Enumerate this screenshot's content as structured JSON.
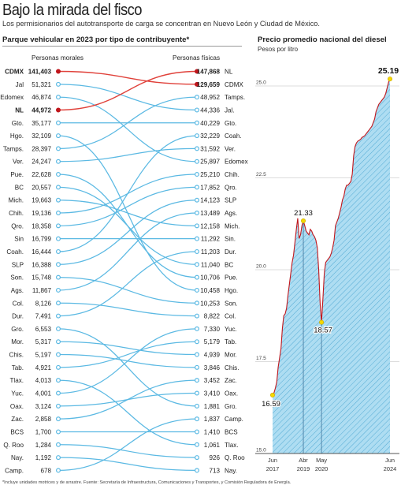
{
  "title": "Bajo la mirada del fisco",
  "subtitle": "Los permisionarios del  autotransporte de carga se concentran en Nuevo León y Ciudad de México.",
  "footnote": "*Incluye unidades motrices y de arrastre. Fuente: Secretaría de Infraestructura, Comunicaciones y Transportes, y Comisión Reguladora de Energía.",
  "colors": {
    "line": "#5bb9e3",
    "highlight": "#e0413a",
    "highlight_dot": "#c0161c",
    "area_fill": "#aeddf2",
    "area_hatch": "#4aa5d1",
    "area_stroke": "#c0161c",
    "peak_dot": "#f5d800"
  },
  "left_panel": {
    "title": "Parque vehicular en 2023 por tipo de contribuyente*",
    "left_header": "Personas morales",
    "right_header": "Personas físicas"
  },
  "right_panel": {
    "title": "Precio promedio nacional del diesel",
    "subtitle": "Pesos por litro"
  },
  "chart_data": [
    {
      "type": "slope",
      "title": "Parque vehicular en 2023 por tipo de contribuyente*",
      "series_left_name": "Personas morales",
      "series_right_name": "Personas físicas",
      "highlight": [
        "CDMX",
        "NL"
      ],
      "left": [
        {
          "label": "CDMX",
          "value": 141403,
          "text": "141,403"
        },
        {
          "label": "Jal",
          "value": 51321,
          "text": "51,321"
        },
        {
          "label": "Edomex",
          "value": 46874,
          "text": "46,874"
        },
        {
          "label": "NL",
          "value": 44972,
          "text": "44,972"
        },
        {
          "label": "Gto.",
          "value": 35177,
          "text": "35,177"
        },
        {
          "label": "Hgo.",
          "value": 32109,
          "text": "32,109"
        },
        {
          "label": "Tamps.",
          "value": 28397,
          "text": "28,397"
        },
        {
          "label": "Ver.",
          "value": 24247,
          "text": "24,247"
        },
        {
          "label": "Pue.",
          "value": 22628,
          "text": "22,628"
        },
        {
          "label": "BC",
          "value": 20557,
          "text": "20,557"
        },
        {
          "label": "Mich.",
          "value": 19663,
          "text": "19,663"
        },
        {
          "label": "Chih.",
          "value": 19136,
          "text": "19,136"
        },
        {
          "label": "Qro.",
          "value": 18358,
          "text": "18,358"
        },
        {
          "label": "Sin",
          "value": 16799,
          "text": "16,799"
        },
        {
          "label": "Coah.",
          "value": 16444,
          "text": "16,444"
        },
        {
          "label": "SLP",
          "value": 16388,
          "text": "16,388"
        },
        {
          "label": "Son.",
          "value": 15748,
          "text": "15,748"
        },
        {
          "label": "Ags.",
          "value": 11867,
          "text": "11,867"
        },
        {
          "label": "Col.",
          "value": 8126,
          "text": "8,126"
        },
        {
          "label": "Dur.",
          "value": 7491,
          "text": "7,491"
        },
        {
          "label": "Gro.",
          "value": 6553,
          "text": "6,553"
        },
        {
          "label": "Mor.",
          "value": 5317,
          "text": "5,317"
        },
        {
          "label": "Chis.",
          "value": 5197,
          "text": "5,197"
        },
        {
          "label": "Tab.",
          "value": 4921,
          "text": "4,921"
        },
        {
          "label": "Tlax.",
          "value": 4013,
          "text": "4,013"
        },
        {
          "label": "Yuc.",
          "value": 4001,
          "text": "4,001"
        },
        {
          "label": "Oax.",
          "value": 3124,
          "text": "3,124"
        },
        {
          "label": "Zac.",
          "value": 2858,
          "text": "2,858"
        },
        {
          "label": "BCS",
          "value": 1700,
          "text": "1,700"
        },
        {
          "label": "Q. Roo",
          "value": 1284,
          "text": "1,284"
        },
        {
          "label": "Nay.",
          "value": 1192,
          "text": "1,192"
        },
        {
          "label": "Camp.",
          "value": 678,
          "text": "678"
        }
      ],
      "right": [
        {
          "label": "NL",
          "value": 147868,
          "text": "147,868"
        },
        {
          "label": "CDMX",
          "value": 129659,
          "text": "129,659"
        },
        {
          "label": "Tamps.",
          "value": 48952,
          "text": "48,952"
        },
        {
          "label": "Jal.",
          "value": 44336,
          "text": "44,336"
        },
        {
          "label": "Gto.",
          "value": 40229,
          "text": "40,229"
        },
        {
          "label": "Coah.",
          "value": 32229,
          "text": "32,229"
        },
        {
          "label": "Ver.",
          "value": 31592,
          "text": "31,592"
        },
        {
          "label": "Edomex",
          "value": 25897,
          "text": "25,897"
        },
        {
          "label": "Chih.",
          "value": 25210,
          "text": "25,210"
        },
        {
          "label": "Qro.",
          "value": 17852,
          "text": "17,852"
        },
        {
          "label": "SLP",
          "value": 14123,
          "text": "14,123"
        },
        {
          "label": "Ags.",
          "value": 13489,
          "text": "13,489"
        },
        {
          "label": "Mich.",
          "value": 12158,
          "text": "12,158"
        },
        {
          "label": "Sin.",
          "value": 11292,
          "text": "11,292"
        },
        {
          "label": "Dur.",
          "value": 11203,
          "text": "11,203"
        },
        {
          "label": "BC",
          "value": 11040,
          "text": "11,040"
        },
        {
          "label": "Pue.",
          "value": 10706,
          "text": "10,706"
        },
        {
          "label": "Hgo.",
          "value": 10458,
          "text": "10,458"
        },
        {
          "label": "Son.",
          "value": 10253,
          "text": "10,253"
        },
        {
          "label": "Col.",
          "value": 8822,
          "text": "8,822"
        },
        {
          "label": "Yuc.",
          "value": 7330,
          "text": "7,330"
        },
        {
          "label": "Tab.",
          "value": 5179,
          "text": "5,179"
        },
        {
          "label": "Mor.",
          "value": 4939,
          "text": "4,939"
        },
        {
          "label": "Chis.",
          "value": 3846,
          "text": "3,846"
        },
        {
          "label": "Zac.",
          "value": 3452,
          "text": "3,452"
        },
        {
          "label": "Oax.",
          "value": 3410,
          "text": "3,410"
        },
        {
          "label": "Gro.",
          "value": 1881,
          "text": "1,881"
        },
        {
          "label": "Camp.",
          "value": 1837,
          "text": "1,837"
        },
        {
          "label": "BCS",
          "value": 1410,
          "text": "1,410"
        },
        {
          "label": "Tlax.",
          "value": 1061,
          "text": "1,061"
        },
        {
          "label": "Q. Roo",
          "value": 926,
          "text": "926"
        },
        {
          "label": "Nay.",
          "value": 713,
          "text": "713"
        }
      ]
    },
    {
      "type": "area",
      "title": "Precio promedio nacional del diesel",
      "ylabel": "Pesos por litro",
      "ylim": [
        15.0,
        25.3
      ],
      "yticks": [
        15.0,
        17.5,
        20.0,
        22.5,
        25.0
      ],
      "xlim": [
        "2017-06",
        "2024-06"
      ],
      "xticks": [
        {
          "date": "2017-06",
          "month": "Jun",
          "year": "2017"
        },
        {
          "date": "2019-04",
          "month": "Abr",
          "year": "2019"
        },
        {
          "date": "2020-05",
          "month": "May",
          "year": "2020"
        },
        {
          "date": "2024-06",
          "month": "Jun",
          "year": "2024"
        }
      ],
      "annotations": [
        {
          "date": "2017-06",
          "value": 16.59,
          "text": "16.59"
        },
        {
          "date": "2019-04",
          "value": 21.33,
          "text": "21.33"
        },
        {
          "date": "2020-05",
          "value": 18.57,
          "text": "18.57"
        },
        {
          "date": "2024-06",
          "value": 25.19,
          "text": "25.19"
        }
      ],
      "series": [
        {
          "date": "2017-06",
          "value": 16.59
        },
        {
          "date": "2017-07",
          "value": 16.65
        },
        {
          "date": "2017-08",
          "value": 16.78
        },
        {
          "date": "2017-09",
          "value": 16.95
        },
        {
          "date": "2017-10",
          "value": 17.35
        },
        {
          "date": "2017-11",
          "value": 17.6
        },
        {
          "date": "2017-12",
          "value": 17.85
        },
        {
          "date": "2018-01",
          "value": 18.4
        },
        {
          "date": "2018-02",
          "value": 18.75
        },
        {
          "date": "2018-03",
          "value": 18.8
        },
        {
          "date": "2018-04",
          "value": 18.95
        },
        {
          "date": "2018-05",
          "value": 19.3
        },
        {
          "date": "2018-06",
          "value": 19.6
        },
        {
          "date": "2018-07",
          "value": 19.9
        },
        {
          "date": "2018-08",
          "value": 20.2
        },
        {
          "date": "2018-09",
          "value": 20.4
        },
        {
          "date": "2018-10",
          "value": 20.75
        },
        {
          "date": "2018-11",
          "value": 21.1
        },
        {
          "date": "2018-12",
          "value": 21.4
        },
        {
          "date": "2019-01",
          "value": 20.85
        },
        {
          "date": "2019-02",
          "value": 20.95
        },
        {
          "date": "2019-03",
          "value": 21.2
        },
        {
          "date": "2019-04",
          "value": 21.33
        },
        {
          "date": "2019-05",
          "value": 21.2
        },
        {
          "date": "2019-06",
          "value": 21.05
        },
        {
          "date": "2019-07",
          "value": 21.0
        },
        {
          "date": "2019-08",
          "value": 20.95
        },
        {
          "date": "2019-09",
          "value": 21.1
        },
        {
          "date": "2019-10",
          "value": 21.05
        },
        {
          "date": "2019-11",
          "value": 20.95
        },
        {
          "date": "2019-12",
          "value": 20.9
        },
        {
          "date": "2020-01",
          "value": 20.8
        },
        {
          "date": "2020-02",
          "value": 20.6
        },
        {
          "date": "2020-03",
          "value": 20.0
        },
        {
          "date": "2020-04",
          "value": 19.1
        },
        {
          "date": "2020-05",
          "value": 18.57
        },
        {
          "date": "2020-06",
          "value": 19.2
        },
        {
          "date": "2020-07",
          "value": 19.9
        },
        {
          "date": "2020-08",
          "value": 20.2
        },
        {
          "date": "2020-09",
          "value": 20.25
        },
        {
          "date": "2020-10",
          "value": 20.3
        },
        {
          "date": "2020-11",
          "value": 20.35
        },
        {
          "date": "2020-12",
          "value": 20.45
        },
        {
          "date": "2021-01",
          "value": 20.6
        },
        {
          "date": "2021-02",
          "value": 20.8
        },
        {
          "date": "2021-03",
          "value": 21.2
        },
        {
          "date": "2021-04",
          "value": 21.3
        },
        {
          "date": "2021-05",
          "value": 21.4
        },
        {
          "date": "2021-06",
          "value": 21.55
        },
        {
          "date": "2021-07",
          "value": 21.7
        },
        {
          "date": "2021-08",
          "value": 21.9
        },
        {
          "date": "2021-09",
          "value": 22.0
        },
        {
          "date": "2021-10",
          "value": 22.2
        },
        {
          "date": "2021-11",
          "value": 22.3
        },
        {
          "date": "2021-12",
          "value": 22.3
        },
        {
          "date": "2022-01",
          "value": 22.35
        },
        {
          "date": "2022-02",
          "value": 22.4
        },
        {
          "date": "2022-03",
          "value": 22.6
        },
        {
          "date": "2022-04",
          "value": 23.1
        },
        {
          "date": "2022-05",
          "value": 23.35
        },
        {
          "date": "2022-06",
          "value": 23.45
        },
        {
          "date": "2022-07",
          "value": 23.5
        },
        {
          "date": "2022-08",
          "value": 23.52
        },
        {
          "date": "2022-09",
          "value": 23.55
        },
        {
          "date": "2022-10",
          "value": 23.6
        },
        {
          "date": "2022-11",
          "value": 23.62
        },
        {
          "date": "2022-12",
          "value": 23.65
        },
        {
          "date": "2023-01",
          "value": 23.7
        },
        {
          "date": "2023-02",
          "value": 23.75
        },
        {
          "date": "2023-03",
          "value": 23.8
        },
        {
          "date": "2023-04",
          "value": 23.85
        },
        {
          "date": "2023-05",
          "value": 23.9
        },
        {
          "date": "2023-06",
          "value": 24.0
        },
        {
          "date": "2023-07",
          "value": 24.1
        },
        {
          "date": "2023-08",
          "value": 24.3
        },
        {
          "date": "2023-09",
          "value": 24.4
        },
        {
          "date": "2023-10",
          "value": 24.5
        },
        {
          "date": "2023-11",
          "value": 24.55
        },
        {
          "date": "2023-12",
          "value": 24.6
        },
        {
          "date": "2024-01",
          "value": 24.65
        },
        {
          "date": "2024-02",
          "value": 24.7
        },
        {
          "date": "2024-03",
          "value": 24.8
        },
        {
          "date": "2024-04",
          "value": 24.95
        },
        {
          "date": "2024-05",
          "value": 25.1
        },
        {
          "date": "2024-06",
          "value": 25.19
        }
      ]
    }
  ]
}
